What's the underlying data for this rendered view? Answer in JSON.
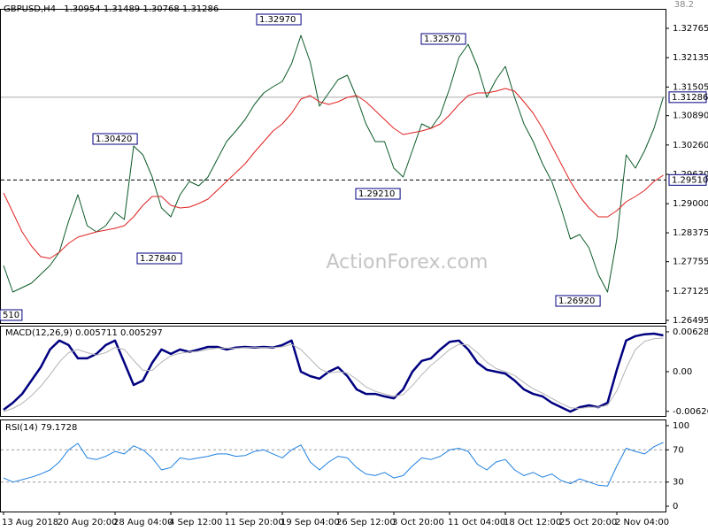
{
  "chart_data": [
    {
      "type": "line",
      "symbol": "GBPUSD,H4",
      "ohlc": [
        1.30954,
        1.31489,
        1.30768,
        1.31286
      ],
      "watermark": "ActionForex.com",
      "fib_label": 38.2,
      "ylim": [
        1.26438,
        1.33183
      ],
      "yticks": [
        1.32765,
        1.32135,
        1.31505,
        {
          "value": 1.3089,
          "label": "1.30890"
        },
        {
          "value": 1.3026,
          "label": "1.30260"
        },
        {
          "value": 1.2963,
          "label": "1.29630"
        },
        {
          "value": 1.29,
          "label": "1.29000"
        },
        1.28375,
        1.27755,
        1.27125,
        1.26495
      ],
      "series": [
        {
          "name": "GBPUSD",
          "color": "#0b5a28",
          "values": [
            1.27673,
            1.27103,
            1.27198,
            1.27293,
            1.27483,
            1.27673,
            1.27958,
            1.28623,
            1.29193,
            1.28528,
            1.28395,
            1.28528,
            1.28813,
            1.28661,
            1.30238,
            1.30048,
            1.29573,
            1.28908,
            1.28718,
            1.29193,
            1.29478,
            1.29383,
            1.29573,
            1.29953,
            1.30333,
            1.30561,
            1.30808,
            1.31131,
            1.31378,
            1.31511,
            1.31625,
            1.32005,
            1.32613,
            1.32043,
            1.31093,
            1.31378,
            1.31663,
            1.31758,
            1.31283,
            1.30713,
            1.30333,
            1.30333,
            1.29763,
            1.29573,
            1.30143,
            1.30713,
            1.30618,
            1.30903,
            1.31473,
            1.32138,
            1.32423,
            1.31948,
            1.31283,
            1.31663,
            1.31948,
            1.31283,
            1.30713,
            1.30333,
            1.29858,
            1.29478,
            1.28908,
            1.28243,
            1.28338,
            1.28053,
            1.27483,
            1.27103,
            1.28243,
            1.30048,
            1.29763,
            1.30143,
            1.30618,
            1.31286
          ]
        },
        {
          "name": "MA",
          "color": "#e02020",
          "values": [
            1.29231,
            1.28813,
            1.28395,
            1.28091,
            1.27863,
            1.27825,
            1.27958,
            1.28148,
            1.28281,
            1.28338,
            1.28395,
            1.28433,
            1.28471,
            1.28528,
            1.28718,
            1.28965,
            1.29155,
            1.29155,
            1.28965,
            1.28908,
            1.28927,
            1.29003,
            1.29098,
            1.29288,
            1.29478,
            1.29668,
            1.29858,
            1.30105,
            1.30333,
            1.30561,
            1.30713,
            1.30941,
            1.31245,
            1.31321,
            1.31188,
            1.31131,
            1.31188,
            1.31283,
            1.31321,
            1.31188,
            1.30998,
            1.30808,
            1.30618,
            1.30485,
            1.30523,
            1.30561,
            1.30618,
            1.30713,
            1.30903,
            1.31131,
            1.31321,
            1.31378,
            1.31378,
            1.31416,
            1.31473,
            1.31416,
            1.31188,
            1.30941,
            1.30618,
            1.30238,
            1.29858,
            1.29478,
            1.29155,
            1.28908,
            1.28718,
            1.28718,
            1.28851,
            1.29041,
            1.29155,
            1.29288,
            1.29478,
            1.29611
          ]
        }
      ],
      "price_lines": [
        {
          "label": "1.29510",
          "value": 1.2951,
          "dashed": true
        },
        {
          "label": "1.31286",
          "value": 1.31286,
          "dashed": false
        }
      ],
      "annotations": [
        {
          "label": "1.32970",
          "value": 1.3297
        },
        {
          "label": "1.32570",
          "value": 1.3257
        },
        {
          "label": "1.30420",
          "value": 1.3042
        },
        {
          "label": "1.27840",
          "value": 1.2784
        },
        {
          "label": "1.29210",
          "value": 1.2921
        },
        {
          "label": "1.26920",
          "value": 1.2692
        },
        {
          "label": "510"
        }
      ]
    },
    {
      "type": "line",
      "title": "MACD(12,26,9)",
      "readout": [
        0.005711,
        0.005297
      ],
      "ylim": [
        -0.00698,
        0.00725
      ],
      "yticks": [
        0.006281,
        {
          "value": 0,
          "label": "0.00"
        },
        -0.00626
      ],
      "series": [
        {
          "name": "MACD",
          "color": "#000080",
          "values": [
            -0.006,
            -0.0049,
            -0.0035,
            -0.0014,
            0.0007,
            0.0035,
            0.0049,
            0.0042,
            0.0021,
            0.0021,
            0.0028,
            0.0042,
            0.0049,
            0.0014,
            -0.0021,
            -0.0014,
            0.0014,
            0.0035,
            0.0028,
            0.0035,
            0.0031,
            0.0035,
            0.0039,
            0.0039,
            0.0035,
            0.0038,
            0.0039,
            0.0038,
            0.0039,
            0.0038,
            0.0042,
            0.0049,
            0,
            -0.0007,
            -0.0011,
            0,
            0.0007,
            -0.0007,
            -0.0028,
            -0.0035,
            -0.0035,
            -0.0039,
            -0.0042,
            -0.0028,
            0,
            0.0017,
            0.0021,
            0.0035,
            0.0047,
            0.0049,
            0.0035,
            0.0014,
            0.0003,
            0,
            -0.0003,
            -0.0014,
            -0.0028,
            -0.0035,
            -0.0039,
            -0.0049,
            -0.0056,
            -0.0063,
            -0.0056,
            -0.0053,
            -0.0056,
            -0.0049,
            0.0003,
            0.0049,
            0.0056,
            0.0059,
            0.006,
            0.005711
          ]
        },
        {
          "name": "Signal",
          "color": "#b4b4b4",
          "values": [
            -0.0063,
            -0.0058,
            -0.005,
            -0.0038,
            -0.0023,
            -0.0005,
            0.0015,
            0.003,
            0.0035,
            0.003,
            0.0026,
            0.003,
            0.0038,
            0.0035,
            0.0018,
            0.0002,
            0.0002,
            0.0015,
            0.0025,
            0.0029,
            0.0031,
            0.0032,
            0.0035,
            0.0037,
            0.0037,
            0.0037,
            0.0038,
            0.0038,
            0.0038,
            0.0038,
            0.0039,
            0.0043,
            0.0035,
            0.002,
            0.0005,
            -0.0002,
            0,
            -0.0002,
            -0.0012,
            -0.0024,
            -0.0031,
            -0.0035,
            -0.0039,
            -0.0036,
            -0.0022,
            -0.0005,
            0.001,
            0.0022,
            0.0035,
            0.0043,
            0.0042,
            0.003,
            0.0015,
            0.0005,
            0,
            -0.0006,
            -0.0017,
            -0.0027,
            -0.0034,
            -0.0042,
            -0.005,
            -0.0057,
            -0.0058,
            -0.0056,
            -0.0056,
            -0.0053,
            -0.003,
            0.0005,
            0.0035,
            0.0048,
            0.0052,
            0.005297
          ]
        }
      ]
    },
    {
      "type": "line",
      "title": "RSI(14)",
      "readout": 79.1728,
      "ylim": [
        -6.6,
        107.7
      ],
      "yticks": [
        100,
        70,
        30,
        0
      ],
      "levels": [
        70,
        30
      ],
      "series": [
        {
          "name": "RSI",
          "color": "#1e80e0",
          "values": [
            35,
            30,
            33,
            36,
            40,
            45,
            55,
            70,
            78,
            60,
            58,
            62,
            68,
            65,
            75,
            70,
            60,
            45,
            48,
            60,
            58,
            60,
            62,
            65,
            65,
            62,
            63,
            68,
            70,
            65,
            60,
            70,
            76,
            55,
            45,
            55,
            62,
            60,
            48,
            40,
            38,
            42,
            35,
            38,
            50,
            60,
            58,
            62,
            70,
            72,
            68,
            52,
            45,
            55,
            58,
            45,
            38,
            42,
            36,
            40,
            32,
            28,
            34,
            30,
            26,
            25,
            50,
            72,
            68,
            65,
            74,
            79.1728
          ]
        }
      ],
      "categories": [
        "13 Aug 2018",
        null,
        null,
        null,
        null,
        null,
        "20 Aug 20:00",
        null,
        null,
        null,
        null,
        null,
        "28 Aug 04:00",
        null,
        null,
        null,
        null,
        null,
        "4 Sep 12:00",
        null,
        null,
        null,
        null,
        null,
        "11 Sep 20:00",
        null,
        null,
        null,
        null,
        null,
        "19 Sep 04:00",
        null,
        null,
        null,
        null,
        null,
        "26 Sep 12:00",
        null,
        null,
        null,
        null,
        null,
        "3 Oct 20:00",
        null,
        null,
        null,
        null,
        null,
        "11 Oct 04:00",
        null,
        null,
        null,
        null,
        null,
        "18 Oct 12:00",
        null,
        null,
        null,
        null,
        null,
        "25 Oct 20:00",
        null,
        null,
        null,
        null,
        null,
        "2 Nov 04:00",
        null,
        null,
        null,
        null,
        null
      ]
    }
  ]
}
